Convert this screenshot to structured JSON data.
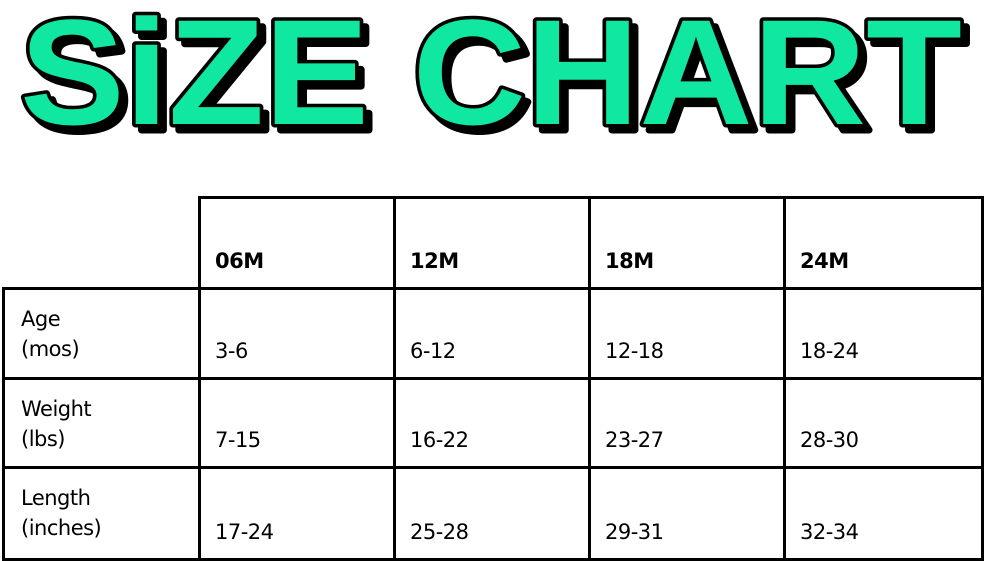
{
  "title": "SiZE CHART",
  "colors": {
    "title_fill": "#10e8a2",
    "title_outline": "#000000",
    "grid": "#000000"
  },
  "table": {
    "columns": [
      "06M",
      "12M",
      "18M",
      "24M"
    ],
    "rows": [
      {
        "label_line1": "Age",
        "label_line2": "(mos)",
        "values": [
          "3-6",
          "6-12",
          "12-18",
          "18-24"
        ]
      },
      {
        "label_line1": "Weight",
        "label_line2": "(lbs)",
        "values": [
          "7-15",
          "16-22",
          "23-27",
          "28-30"
        ]
      },
      {
        "label_line1": "Length",
        "label_line2": "(inches)",
        "values": [
          "17-24",
          "25-28",
          "29-31",
          "32-34"
        ]
      }
    ]
  }
}
